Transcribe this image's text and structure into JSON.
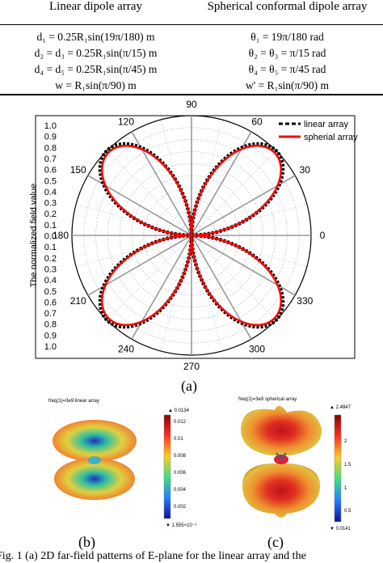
{
  "table": {
    "headers": [
      "Linear dipole array",
      "Spherical conformal dipole array"
    ],
    "rows": [
      [
        "d₁ = 0.25R₁sin(19π/180)  m",
        "θ₁ = 19π/180 rad"
      ],
      [
        "d₂ = d₃ = 0.25R₁sin(π/15) m",
        "θ₂ = θ₃ = π/15 rad"
      ],
      [
        "d₄ = d₅ = 0.25R₁sin(π/45) m",
        "θ₄ = θ₅ = π/45 rad"
      ],
      [
        "w = R₁sin(π/90)  m",
        "w' = R₁sin(π/90)  m"
      ]
    ]
  },
  "polar": {
    "ylabel": "The normalized field value",
    "angle_labels": [
      "0",
      "30",
      "60",
      "90",
      "120",
      "150",
      "180",
      "210",
      "240",
      "270",
      "300",
      "330"
    ],
    "radial_ticks": [
      "1.0",
      "0.9",
      "0.8",
      "0.7",
      "0.6",
      "0.5",
      "0.4",
      "0.3",
      "0.2",
      "0.1",
      "0.0",
      "0.1",
      "0.2",
      "0.3",
      "0.4",
      "0.5",
      "0.6",
      "0.7",
      "0.8",
      "0.9",
      "1.0"
    ],
    "legend": [
      "linear array",
      "spherial array"
    ],
    "colors": {
      "linear": "#000000",
      "spherical": "#ff0000"
    }
  },
  "chart_data": {
    "type": "polar-line",
    "theta_deg": [
      0,
      15,
      30,
      45,
      60,
      75,
      90,
      105,
      120,
      135,
      150,
      165,
      180,
      195,
      210,
      225,
      240,
      255,
      270,
      285,
      300,
      315,
      330,
      345,
      360
    ],
    "series": [
      {
        "name": "linear array",
        "values": [
          0,
          0.5,
          0.87,
          1.0,
          0.87,
          0.5,
          0,
          0.5,
          0.87,
          1.0,
          0.87,
          0.5,
          0,
          0.5,
          0.87,
          1.0,
          0.87,
          0.5,
          0,
          0.5,
          0.87,
          1.0,
          0.87,
          0.5,
          0
        ]
      },
      {
        "name": "spherial array",
        "values": [
          0,
          0.49,
          0.86,
          0.98,
          0.86,
          0.49,
          0,
          0.49,
          0.86,
          0.98,
          0.86,
          0.49,
          0,
          0.49,
          0.86,
          0.98,
          0.86,
          0.49,
          0,
          0.49,
          0.86,
          0.98,
          0.86,
          0.49,
          0
        ]
      }
    ],
    "rlim": [
      0,
      1.0
    ]
  },
  "sublabels": {
    "a": "(a)",
    "b": "(b)",
    "c": "(c)"
  },
  "panel_b": {
    "title": "freq(1)=3e9  linear array",
    "max": "0.0134",
    "min": "1.555×10⁻⁵",
    "ticks": [
      "0.012",
      "0.01",
      "0.008",
      "0.006",
      "0.004",
      "0.002"
    ]
  },
  "panel_c": {
    "title": "freq(1)=3e9  spherical array",
    "max": "2.4847",
    "min": "0.0141",
    "ticks": [
      "2",
      "1.5",
      "1",
      "0.5"
    ]
  },
  "caption": "Fig. 1 (a) 2D far-field patterns of E-plane for the linear array and the"
}
